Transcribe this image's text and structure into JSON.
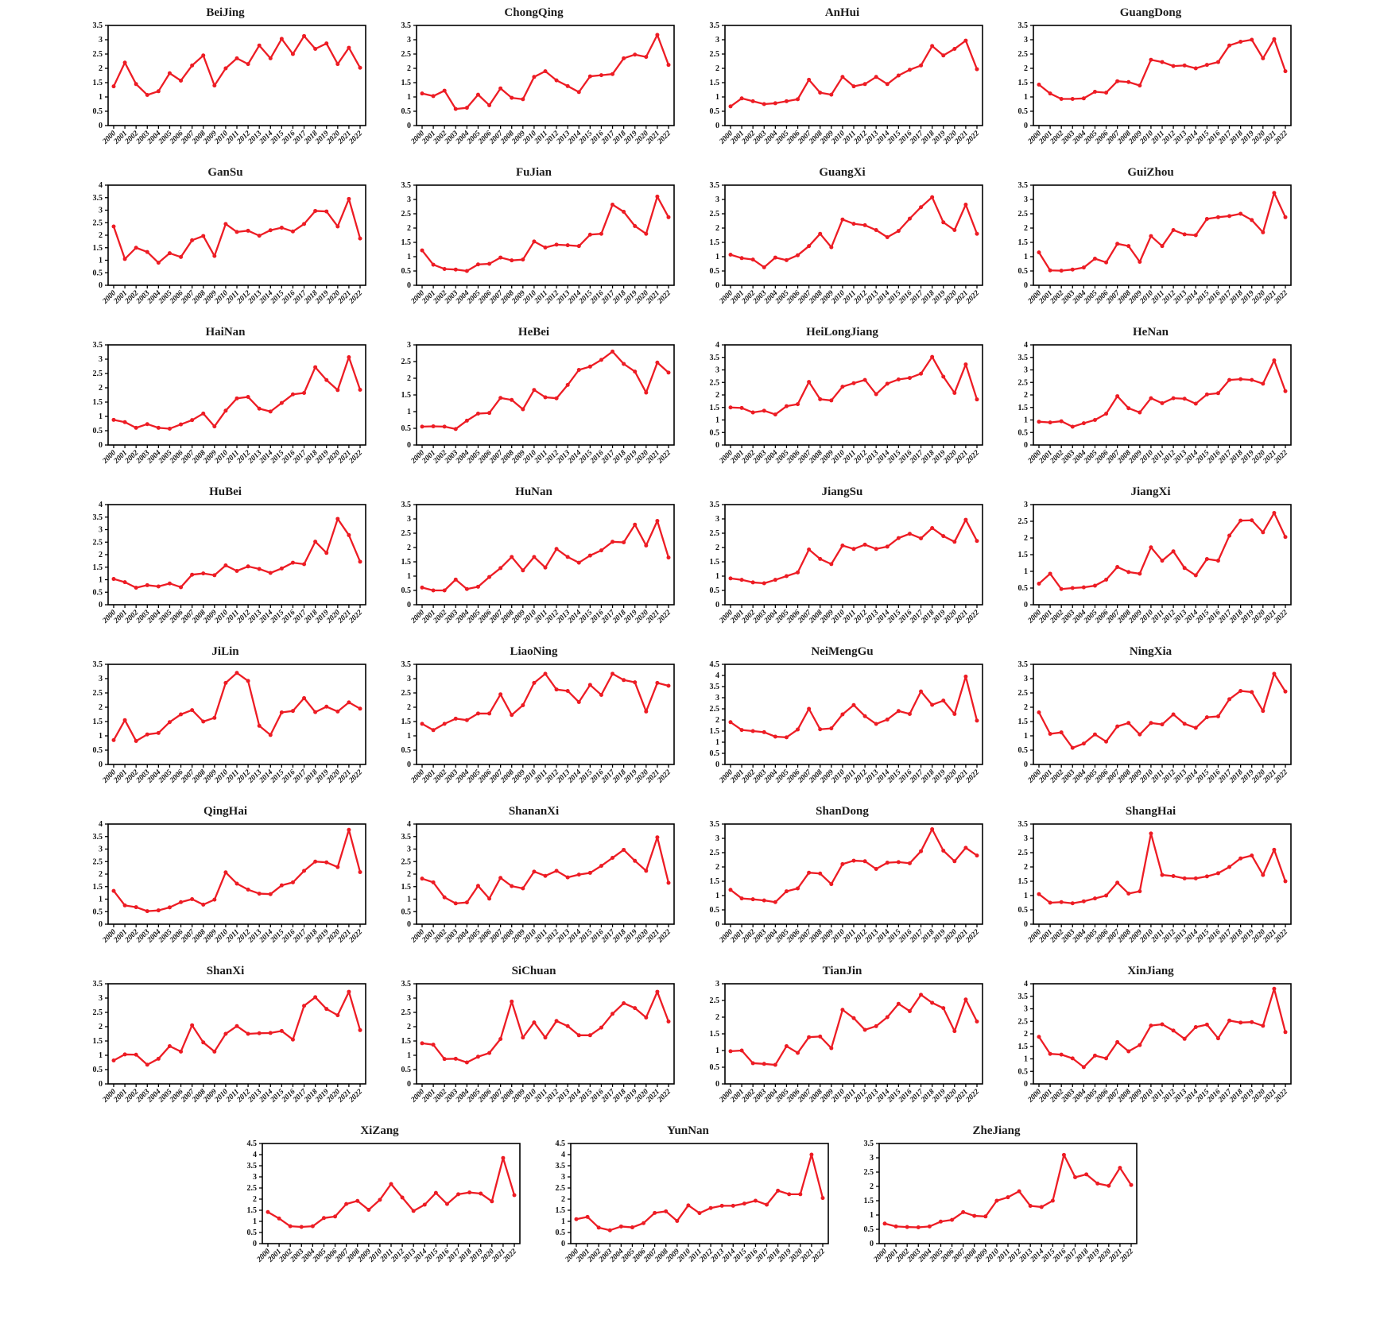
{
  "page": {
    "background_color": "#ffffff",
    "accent_color": "#ed1c24",
    "axis_color": "#000000",
    "text_color": "#1c1c1c"
  },
  "chart_data": {
    "type": "line",
    "grid": false,
    "legend": "none",
    "marker": "circle",
    "line_color": "#ed1c24",
    "ytick_step": 0.5,
    "x": [
      2000,
      2001,
      2002,
      2003,
      2004,
      2005,
      2006,
      2007,
      2008,
      2009,
      2010,
      2011,
      2012,
      2013,
      2014,
      2015,
      2016,
      2017,
      2018,
      2019,
      2020,
      2021,
      2022
    ],
    "layout": {
      "columns": 4,
      "rows": 8,
      "last_row_count": 3,
      "last_row_alignment": "center"
    },
    "series": [
      {
        "title": "BeiJing",
        "ylim": [
          0,
          3.5
        ],
        "values": [
          1.37,
          2.2,
          1.45,
          1.07,
          1.2,
          1.83,
          1.57,
          2.1,
          2.45,
          1.4,
          2.0,
          2.35,
          2.15,
          2.8,
          2.35,
          3.03,
          2.5,
          3.13,
          2.68,
          2.87,
          2.15,
          2.72,
          2.02
        ]
      },
      {
        "title": "ChongQing",
        "ylim": [
          0,
          3.5
        ],
        "values": [
          1.12,
          1.03,
          1.22,
          0.58,
          0.62,
          1.08,
          0.71,
          1.3,
          0.97,
          0.92,
          1.7,
          1.9,
          1.58,
          1.38,
          1.17,
          1.72,
          1.76,
          1.8,
          2.35,
          2.48,
          2.4,
          3.17,
          2.12
        ]
      },
      {
        "title": "AnHui",
        "ylim": [
          0,
          3.5
        ],
        "values": [
          0.67,
          0.95,
          0.85,
          0.75,
          0.78,
          0.85,
          0.92,
          1.6,
          1.15,
          1.08,
          1.7,
          1.37,
          1.45,
          1.7,
          1.45,
          1.75,
          1.95,
          2.1,
          2.78,
          2.45,
          2.68,
          2.97,
          1.97
        ]
      },
      {
        "title": "GuangDong",
        "ylim": [
          0,
          3.5
        ],
        "values": [
          1.43,
          1.12,
          0.93,
          0.93,
          0.95,
          1.18,
          1.15,
          1.55,
          1.52,
          1.4,
          2.3,
          2.22,
          2.08,
          2.1,
          2.0,
          2.12,
          2.22,
          2.8,
          2.93,
          3.0,
          2.35,
          3.02,
          1.9
        ]
      },
      {
        "title": "GanSu",
        "ylim": [
          0,
          4.0
        ],
        "values": [
          2.35,
          1.05,
          1.5,
          1.33,
          0.9,
          1.28,
          1.13,
          1.8,
          1.97,
          1.17,
          2.45,
          2.13,
          2.18,
          1.98,
          2.2,
          2.3,
          2.15,
          2.45,
          2.97,
          2.95,
          2.35,
          3.45,
          1.87
        ]
      },
      {
        "title": "FuJian",
        "ylim": [
          0,
          3.5
        ],
        "values": [
          1.22,
          0.72,
          0.57,
          0.55,
          0.5,
          0.73,
          0.75,
          0.97,
          0.87,
          0.9,
          1.53,
          1.32,
          1.42,
          1.4,
          1.37,
          1.77,
          1.8,
          2.82,
          2.57,
          2.07,
          1.8,
          3.1,
          2.38
        ]
      },
      {
        "title": "GuangXi",
        "ylim": [
          0,
          3.5
        ],
        "values": [
          1.07,
          0.95,
          0.9,
          0.63,
          0.97,
          0.88,
          1.05,
          1.37,
          1.8,
          1.33,
          2.3,
          2.15,
          2.1,
          1.93,
          1.68,
          1.9,
          2.33,
          2.73,
          3.08,
          2.2,
          1.93,
          2.82,
          1.8
        ]
      },
      {
        "title": "GuiZhou",
        "ylim": [
          0,
          3.5
        ],
        "values": [
          1.15,
          0.52,
          0.51,
          0.55,
          0.62,
          0.93,
          0.8,
          1.45,
          1.37,
          0.82,
          1.72,
          1.37,
          1.93,
          1.78,
          1.75,
          2.32,
          2.38,
          2.42,
          2.5,
          2.28,
          1.85,
          3.23,
          2.38
        ]
      },
      {
        "title": "HaiNan",
        "ylim": [
          0,
          3.5
        ],
        "values": [
          0.88,
          0.8,
          0.6,
          0.73,
          0.6,
          0.57,
          0.72,
          0.87,
          1.1,
          0.65,
          1.2,
          1.63,
          1.68,
          1.27,
          1.17,
          1.47,
          1.77,
          1.82,
          2.72,
          2.27,
          1.92,
          3.07,
          1.93
        ]
      },
      {
        "title": "HeBei",
        "ylim": [
          0,
          3.0
        ],
        "values": [
          0.55,
          0.56,
          0.55,
          0.48,
          0.73,
          0.94,
          0.96,
          1.41,
          1.35,
          1.07,
          1.65,
          1.43,
          1.4,
          1.8,
          2.25,
          2.35,
          2.55,
          2.8,
          2.43,
          2.2,
          1.57,
          2.47,
          2.17
        ]
      },
      {
        "title": "HeiLongJiang",
        "ylim": [
          0,
          4.0
        ],
        "values": [
          1.5,
          1.48,
          1.3,
          1.37,
          1.22,
          1.55,
          1.63,
          2.52,
          1.83,
          1.78,
          2.33,
          2.47,
          2.6,
          2.03,
          2.45,
          2.62,
          2.68,
          2.85,
          3.52,
          2.73,
          2.08,
          3.22,
          1.82
        ]
      },
      {
        "title": "HeNan",
        "ylim": [
          0,
          4.0
        ],
        "values": [
          0.93,
          0.9,
          0.95,
          0.73,
          0.87,
          1.0,
          1.25,
          1.95,
          1.47,
          1.3,
          1.87,
          1.67,
          1.87,
          1.85,
          1.65,
          2.02,
          2.07,
          2.6,
          2.63,
          2.6,
          2.45,
          3.38,
          2.15
        ]
      },
      {
        "title": "HuBei",
        "ylim": [
          0,
          4.0
        ],
        "values": [
          1.03,
          0.9,
          0.68,
          0.78,
          0.73,
          0.85,
          0.7,
          1.2,
          1.25,
          1.18,
          1.57,
          1.35,
          1.53,
          1.43,
          1.27,
          1.45,
          1.68,
          1.62,
          2.52,
          2.07,
          3.43,
          2.78,
          1.72
        ]
      },
      {
        "title": "HuNan",
        "ylim": [
          0,
          3.5
        ],
        "values": [
          0.6,
          0.5,
          0.5,
          0.88,
          0.55,
          0.63,
          0.97,
          1.28,
          1.67,
          1.2,
          1.67,
          1.3,
          1.95,
          1.67,
          1.47,
          1.72,
          1.9,
          2.2,
          2.18,
          2.8,
          2.07,
          2.93,
          1.65
        ]
      },
      {
        "title": "JiangSu",
        "ylim": [
          0,
          3.5
        ],
        "values": [
          0.92,
          0.87,
          0.78,
          0.75,
          0.87,
          1.0,
          1.13,
          1.93,
          1.6,
          1.42,
          2.07,
          1.95,
          2.1,
          1.95,
          2.03,
          2.33,
          2.48,
          2.32,
          2.68,
          2.4,
          2.2,
          2.97,
          2.23
        ]
      },
      {
        "title": "JiangXi",
        "ylim": [
          0,
          3.0
        ],
        "values": [
          0.63,
          0.93,
          0.47,
          0.5,
          0.52,
          0.57,
          0.75,
          1.13,
          0.98,
          0.93,
          1.72,
          1.32,
          1.6,
          1.1,
          0.88,
          1.37,
          1.32,
          2.07,
          2.52,
          2.53,
          2.17,
          2.75,
          2.03
        ]
      },
      {
        "title": "JiLin",
        "ylim": [
          0,
          3.5
        ],
        "values": [
          0.85,
          1.55,
          0.82,
          1.05,
          1.1,
          1.48,
          1.75,
          1.9,
          1.5,
          1.63,
          2.85,
          3.2,
          2.92,
          1.35,
          1.03,
          1.82,
          1.87,
          2.32,
          1.83,
          2.02,
          1.85,
          2.17,
          1.95
        ]
      },
      {
        "title": "LiaoNing",
        "ylim": [
          0,
          3.5
        ],
        "values": [
          1.42,
          1.2,
          1.42,
          1.6,
          1.55,
          1.78,
          1.78,
          2.45,
          1.73,
          2.07,
          2.85,
          3.17,
          2.62,
          2.57,
          2.18,
          2.78,
          2.43,
          3.17,
          2.95,
          2.87,
          1.85,
          2.85,
          2.75
        ]
      },
      {
        "title": "NeiMengGu",
        "ylim": [
          0,
          4.5
        ],
        "values": [
          1.9,
          1.55,
          1.5,
          1.45,
          1.25,
          1.22,
          1.57,
          2.5,
          1.58,
          1.62,
          2.25,
          2.67,
          2.17,
          1.82,
          2.02,
          2.4,
          2.27,
          3.28,
          2.68,
          2.87,
          2.27,
          3.95,
          1.97
        ]
      },
      {
        "title": "NingXia",
        "ylim": [
          0,
          3.5
        ],
        "values": [
          1.82,
          1.07,
          1.12,
          0.58,
          0.73,
          1.05,
          0.8,
          1.33,
          1.45,
          1.05,
          1.45,
          1.4,
          1.75,
          1.42,
          1.28,
          1.65,
          1.68,
          2.28,
          2.57,
          2.53,
          1.87,
          3.17,
          2.55
        ]
      },
      {
        "title": "QingHai",
        "ylim": [
          0,
          4.0
        ],
        "values": [
          1.33,
          0.75,
          0.68,
          0.52,
          0.55,
          0.67,
          0.88,
          1.0,
          0.78,
          0.98,
          2.07,
          1.62,
          1.38,
          1.22,
          1.2,
          1.55,
          1.67,
          2.13,
          2.5,
          2.47,
          2.28,
          3.77,
          2.08
        ]
      },
      {
        "title": "ShananXi",
        "ylim": [
          0,
          4.0
        ],
        "values": [
          1.82,
          1.67,
          1.07,
          0.83,
          0.87,
          1.53,
          1.02,
          1.85,
          1.52,
          1.43,
          2.1,
          1.93,
          2.13,
          1.87,
          1.98,
          2.05,
          2.33,
          2.65,
          2.97,
          2.53,
          2.13,
          3.47,
          1.65
        ]
      },
      {
        "title": "ShanDong",
        "ylim": [
          0,
          3.5
        ],
        "values": [
          1.2,
          0.9,
          0.87,
          0.83,
          0.77,
          1.15,
          1.25,
          1.8,
          1.77,
          1.4,
          2.1,
          2.22,
          2.2,
          1.93,
          2.15,
          2.17,
          2.13,
          2.55,
          3.32,
          2.57,
          2.2,
          2.67,
          2.4
        ]
      },
      {
        "title": "ShangHai",
        "ylim": [
          0,
          3.5
        ],
        "values": [
          1.05,
          0.75,
          0.77,
          0.73,
          0.8,
          0.9,
          1.0,
          1.45,
          1.07,
          1.15,
          3.17,
          1.72,
          1.68,
          1.6,
          1.6,
          1.67,
          1.78,
          2.0,
          2.3,
          2.4,
          1.72,
          2.6,
          1.5
        ]
      },
      {
        "title": "ShanXi",
        "ylim": [
          0,
          3.5
        ],
        "values": [
          0.82,
          1.03,
          1.02,
          0.67,
          0.88,
          1.32,
          1.13,
          2.05,
          1.45,
          1.13,
          1.75,
          2.02,
          1.75,
          1.77,
          1.78,
          1.85,
          1.55,
          2.73,
          3.03,
          2.62,
          2.4,
          3.22,
          1.88
        ]
      },
      {
        "title": "SiChuan",
        "ylim": [
          0,
          3.5
        ],
        "values": [
          1.42,
          1.37,
          0.87,
          0.88,
          0.75,
          0.95,
          1.08,
          1.57,
          2.88,
          1.62,
          2.15,
          1.62,
          2.2,
          2.02,
          1.7,
          1.7,
          1.97,
          2.45,
          2.82,
          2.65,
          2.32,
          3.22,
          2.18
        ]
      },
      {
        "title": "TianJin",
        "ylim": [
          0,
          3.0
        ],
        "values": [
          0.98,
          1.0,
          0.62,
          0.6,
          0.57,
          1.13,
          0.93,
          1.4,
          1.42,
          1.07,
          2.22,
          1.97,
          1.62,
          1.73,
          2.0,
          2.4,
          2.18,
          2.67,
          2.43,
          2.27,
          1.58,
          2.53,
          1.87
        ]
      },
      {
        "title": "XinJiang",
        "ylim": [
          0,
          4.0
        ],
        "values": [
          1.88,
          1.2,
          1.17,
          1.02,
          0.67,
          1.13,
          1.02,
          1.67,
          1.3,
          1.55,
          2.33,
          2.38,
          2.13,
          1.8,
          2.27,
          2.37,
          1.82,
          2.53,
          2.45,
          2.47,
          2.32,
          3.8,
          2.07
        ]
      },
      {
        "title": "XiZang",
        "ylim": [
          0,
          4.5
        ],
        "values": [
          1.42,
          1.13,
          0.78,
          0.75,
          0.78,
          1.15,
          1.22,
          1.78,
          1.92,
          1.52,
          1.97,
          2.68,
          2.07,
          1.47,
          1.75,
          2.28,
          1.78,
          2.22,
          2.3,
          2.25,
          1.9,
          3.85,
          2.18
        ]
      },
      {
        "title": "YunNan",
        "ylim": [
          0,
          4.5
        ],
        "values": [
          1.1,
          1.2,
          0.72,
          0.6,
          0.77,
          0.73,
          0.92,
          1.38,
          1.45,
          1.02,
          1.72,
          1.37,
          1.6,
          1.7,
          1.7,
          1.8,
          1.93,
          1.75,
          2.38,
          2.22,
          2.22,
          4.0,
          2.05
        ]
      },
      {
        "title": "ZheJiang",
        "ylim": [
          0,
          3.5
        ],
        "values": [
          0.7,
          0.6,
          0.58,
          0.57,
          0.6,
          0.77,
          0.83,
          1.1,
          0.97,
          0.95,
          1.5,
          1.62,
          1.83,
          1.32,
          1.28,
          1.5,
          3.1,
          2.32,
          2.42,
          2.1,
          2.02,
          2.65,
          2.05
        ]
      }
    ]
  }
}
